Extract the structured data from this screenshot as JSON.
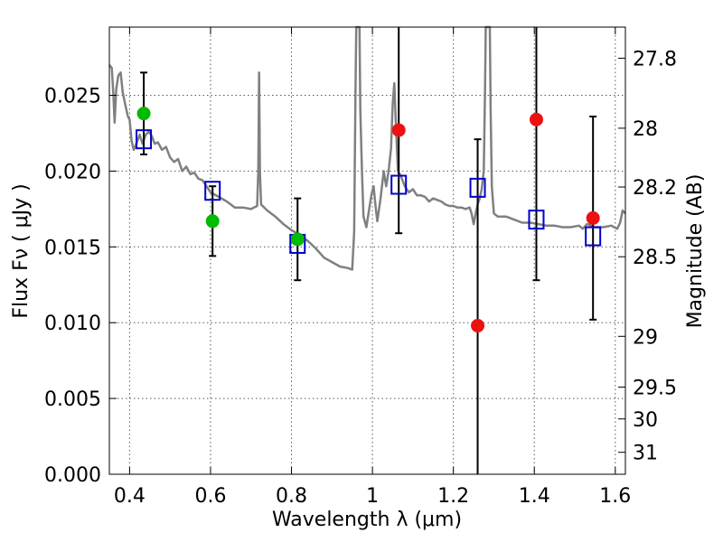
{
  "chart_data": {
    "type": "scatter",
    "xlabel": "Wavelength  λ (μm)",
    "ylabel": "Flux  Fν  ( μJy )",
    "ylabel_right": "Magnitude (AB)",
    "xlim": [
      0.35,
      1.625
    ],
    "ylim": [
      0.0,
      0.0295
    ],
    "grid": true,
    "x_ticks": [
      0.4,
      0.6,
      0.8,
      1.0,
      1.2,
      1.4,
      1.6
    ],
    "x_tick_labels": [
      "0.4",
      "0.6",
      "0.8",
      "1",
      "1.2",
      "1.4",
      "1.6"
    ],
    "y_ticks": [
      0.0,
      0.005,
      0.01,
      0.015,
      0.02,
      0.025
    ],
    "y_tick_labels": [
      "0.000",
      "0.005",
      "0.010",
      "0.015",
      "0.020",
      "0.025"
    ],
    "right_axis": {
      "ticks": [
        {
          "flux": 0.02745,
          "label": "27.8"
        },
        {
          "flux": 0.02283,
          "label": "28"
        },
        {
          "flux": 0.01895,
          "label": "28.2"
        },
        {
          "flux": 0.01435,
          "label": "28.5"
        },
        {
          "flux": 0.0091,
          "label": "29"
        },
        {
          "flux": 0.00575,
          "label": "29.5"
        },
        {
          "flux": 0.00365,
          "label": "30"
        },
        {
          "flux": 0.00145,
          "label": "31"
        }
      ]
    },
    "series": [
      {
        "kind": "model-spectrum",
        "color": "#808080",
        "points": [
          [
            0.35,
            0.027
          ],
          [
            0.356,
            0.0268
          ],
          [
            0.36,
            0.025
          ],
          [
            0.363,
            0.0232
          ],
          [
            0.367,
            0.0254
          ],
          [
            0.372,
            0.0263
          ],
          [
            0.378,
            0.0265
          ],
          [
            0.383,
            0.0252
          ],
          [
            0.39,
            0.0243
          ],
          [
            0.396,
            0.0236
          ],
          [
            0.4,
            0.0234
          ],
          [
            0.405,
            0.022
          ],
          [
            0.41,
            0.0214
          ],
          [
            0.418,
            0.0219
          ],
          [
            0.425,
            0.0224
          ],
          [
            0.432,
            0.0218
          ],
          [
            0.44,
            0.0224
          ],
          [
            0.448,
            0.0226
          ],
          [
            0.455,
            0.0223
          ],
          [
            0.462,
            0.0218
          ],
          [
            0.47,
            0.0219
          ],
          [
            0.48,
            0.0214
          ],
          [
            0.49,
            0.0216
          ],
          [
            0.5,
            0.0209
          ],
          [
            0.51,
            0.0206
          ],
          [
            0.52,
            0.0208
          ],
          [
            0.53,
            0.02
          ],
          [
            0.54,
            0.0203
          ],
          [
            0.55,
            0.0198
          ],
          [
            0.56,
            0.0199
          ],
          [
            0.57,
            0.0195
          ],
          [
            0.58,
            0.0194
          ],
          [
            0.59,
            0.019
          ],
          [
            0.6,
            0.0186
          ],
          [
            0.62,
            0.0183
          ],
          [
            0.64,
            0.018
          ],
          [
            0.66,
            0.0176
          ],
          [
            0.68,
            0.0176
          ],
          [
            0.7,
            0.0175
          ],
          [
            0.715,
            0.0177
          ],
          [
            0.718,
            0.02
          ],
          [
            0.72,
            0.0265
          ],
          [
            0.722,
            0.02
          ],
          [
            0.725,
            0.0178
          ],
          [
            0.74,
            0.0174
          ],
          [
            0.76,
            0.017
          ],
          [
            0.78,
            0.0165
          ],
          [
            0.8,
            0.0161
          ],
          [
            0.82,
            0.0158
          ],
          [
            0.84,
            0.0154
          ],
          [
            0.86,
            0.0149
          ],
          [
            0.88,
            0.0143
          ],
          [
            0.9,
            0.014
          ],
          [
            0.92,
            0.0137
          ],
          [
            0.94,
            0.0136
          ],
          [
            0.95,
            0.0135
          ],
          [
            0.955,
            0.016
          ],
          [
            0.958,
            0.025
          ],
          [
            0.96,
            0.0295
          ],
          [
            0.968,
            0.0295
          ],
          [
            0.97,
            0.024
          ],
          [
            0.974,
            0.02
          ],
          [
            0.978,
            0.017
          ],
          [
            0.985,
            0.0163
          ],
          [
            0.992,
            0.0175
          ],
          [
            0.998,
            0.0185
          ],
          [
            1.003,
            0.019
          ],
          [
            1.008,
            0.0176
          ],
          [
            1.012,
            0.0167
          ],
          [
            1.02,
            0.0182
          ],
          [
            1.028,
            0.02
          ],
          [
            1.034,
            0.019
          ],
          [
            1.04,
            0.02
          ],
          [
            1.046,
            0.0215
          ],
          [
            1.05,
            0.0244
          ],
          [
            1.054,
            0.0258
          ],
          [
            1.058,
            0.023
          ],
          [
            1.063,
            0.02
          ],
          [
            1.07,
            0.0197
          ],
          [
            1.08,
            0.019
          ],
          [
            1.09,
            0.0186
          ],
          [
            1.1,
            0.0188
          ],
          [
            1.11,
            0.0184
          ],
          [
            1.12,
            0.0184
          ],
          [
            1.13,
            0.0183
          ],
          [
            1.14,
            0.018
          ],
          [
            1.15,
            0.0182
          ],
          [
            1.16,
            0.0181
          ],
          [
            1.17,
            0.018
          ],
          [
            1.18,
            0.0178
          ],
          [
            1.19,
            0.0177
          ],
          [
            1.2,
            0.0177
          ],
          [
            1.21,
            0.0176
          ],
          [
            1.22,
            0.0176
          ],
          [
            1.23,
            0.0175
          ],
          [
            1.24,
            0.0176
          ],
          [
            1.245,
            0.0172
          ],
          [
            1.25,
            0.0165
          ],
          [
            1.255,
            0.0172
          ],
          [
            1.26,
            0.0178
          ],
          [
            1.265,
            0.0182
          ],
          [
            1.27,
            0.0188
          ],
          [
            1.275,
            0.02
          ],
          [
            1.278,
            0.025
          ],
          [
            1.28,
            0.0295
          ],
          [
            1.29,
            0.0295
          ],
          [
            1.292,
            0.024
          ],
          [
            1.295,
            0.019
          ],
          [
            1.3,
            0.0172
          ],
          [
            1.31,
            0.017
          ],
          [
            1.33,
            0.017
          ],
          [
            1.35,
            0.0168
          ],
          [
            1.37,
            0.0166
          ],
          [
            1.39,
            0.0166
          ],
          [
            1.41,
            0.0165
          ],
          [
            1.43,
            0.0164
          ],
          [
            1.45,
            0.0164
          ],
          [
            1.47,
            0.0163
          ],
          [
            1.49,
            0.0163
          ],
          [
            1.51,
            0.0164
          ],
          [
            1.52,
            0.0162
          ],
          [
            1.53,
            0.0165
          ],
          [
            1.55,
            0.0163
          ],
          [
            1.57,
            0.0163
          ],
          [
            1.59,
            0.0164
          ],
          [
            1.605,
            0.0162
          ],
          [
            1.612,
            0.0166
          ],
          [
            1.618,
            0.0174
          ],
          [
            1.625,
            0.0172
          ]
        ]
      },
      {
        "kind": "open-squares",
        "color": "#0000cc",
        "points": [
          [
            0.435,
            0.0221
          ],
          [
            0.605,
            0.0187
          ],
          [
            0.815,
            0.0152
          ],
          [
            1.065,
            0.0191
          ],
          [
            1.26,
            0.0189
          ],
          [
            1.405,
            0.0168
          ],
          [
            1.545,
            0.0157
          ]
        ]
      },
      {
        "kind": "filled-circles",
        "color": "#00bb00",
        "points": [
          [
            0.435,
            0.0238
          ],
          [
            0.605,
            0.0167
          ],
          [
            0.815,
            0.0155
          ]
        ]
      },
      {
        "kind": "filled-circles",
        "color": "#ee1111",
        "points": [
          [
            1.065,
            0.0227
          ],
          [
            1.26,
            0.0098
          ],
          [
            1.405,
            0.0234
          ],
          [
            1.545,
            0.0169
          ]
        ]
      }
    ],
    "error_bars": {
      "color": "#000000",
      "items": [
        {
          "x": 0.435,
          "y": 0.0238,
          "low": 0.0211,
          "high": 0.0265
        },
        {
          "x": 0.605,
          "y": 0.0167,
          "low": 0.0144,
          "high": 0.019
        },
        {
          "x": 0.815,
          "y": 0.0155,
          "low": 0.0128,
          "high": 0.0182
        },
        {
          "x": 1.065,
          "y": 0.0227,
          "low": 0.0159,
          "high": 0.0295
        },
        {
          "x": 1.26,
          "y": 0.0098,
          "low": 0.0,
          "high": 0.0221
        },
        {
          "x": 1.405,
          "y": 0.0234,
          "low": 0.0128,
          "high": 0.0295
        },
        {
          "x": 1.545,
          "y": 0.0169,
          "low": 0.0102,
          "high": 0.0236
        }
      ]
    }
  }
}
